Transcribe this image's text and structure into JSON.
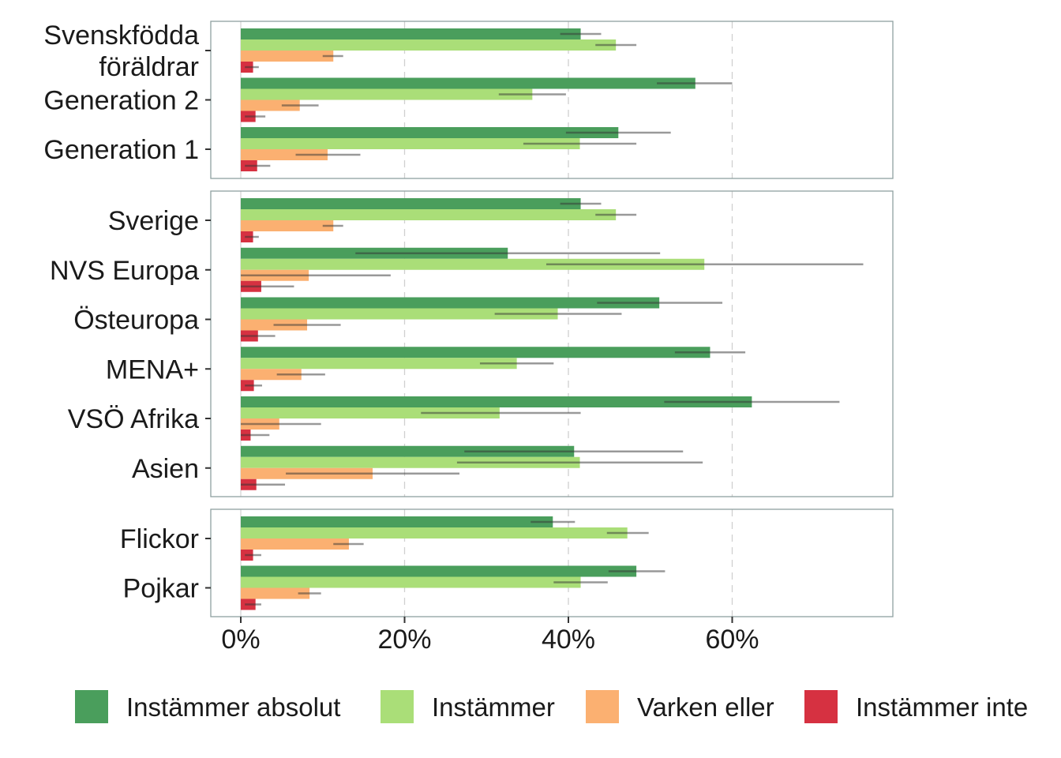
{
  "chart_data": {
    "type": "bar",
    "orientation": "horizontal",
    "grouped": true,
    "xlim": [
      -0.03,
      0.79
    ],
    "x_ticks": [
      0,
      0.2,
      0.4,
      0.6
    ],
    "x_tick_labels": [
      "0%",
      "20%",
      "40%",
      "60%"
    ],
    "grid": "vertical dashed",
    "legend_position": "bottom",
    "series": [
      {
        "name": "Instämmer absolut",
        "color": "#4a9e5c"
      },
      {
        "name": "Instämmer",
        "color": "#aade78"
      },
      {
        "name": "Varken eller",
        "color": "#fbb071"
      },
      {
        "name": "Instämmer inte",
        "color": "#d63141"
      }
    ],
    "panels": [
      {
        "categories": [
          {
            "label": [
              "Svenskfödda",
              "föräldrar"
            ],
            "values": [
              0.415,
              0.458,
              0.113,
              0.015
            ],
            "ci": [
              [
                0.39,
                0.44
              ],
              [
                0.433,
                0.483
              ],
              [
                0.1,
                0.125
              ],
              [
                0.005,
                0.022
              ]
            ]
          },
          {
            "label": [
              "Generation 2"
            ],
            "values": [
              0.555,
              0.356,
              0.072,
              0.018
            ],
            "ci": [
              [
                0.508,
                0.6
              ],
              [
                0.315,
                0.397
              ],
              [
                0.05,
                0.095
              ],
              [
                0.005,
                0.03
              ]
            ]
          },
          {
            "label": [
              "Generation 1"
            ],
            "values": [
              0.461,
              0.414,
              0.106,
              0.02
            ],
            "ci": [
              [
                0.397,
                0.525
              ],
              [
                0.345,
                0.483
              ],
              [
                0.067,
                0.146
              ],
              [
                0.005,
                0.036
              ]
            ]
          }
        ]
      },
      {
        "categories": [
          {
            "label": [
              "Sverige"
            ],
            "values": [
              0.415,
              0.458,
              0.113,
              0.015
            ],
            "ci": [
              [
                0.39,
                0.44
              ],
              [
                0.433,
                0.483
              ],
              [
                0.1,
                0.125
              ],
              [
                0.005,
                0.022
              ]
            ]
          },
          {
            "label": [
              "NVS Europa"
            ],
            "values": [
              0.326,
              0.566,
              0.083,
              0.025
            ],
            "ci": [
              [
                0.14,
                0.512
              ],
              [
                0.373,
                0.76
              ],
              [
                0.0,
                0.183
              ],
              [
                0.0,
                0.065
              ]
            ]
          },
          {
            "label": [
              "Östeuropa"
            ],
            "values": [
              0.511,
              0.387,
              0.081,
              0.021
            ],
            "ci": [
              [
                0.435,
                0.588
              ],
              [
                0.31,
                0.465
              ],
              [
                0.04,
                0.122
              ],
              [
                0.0,
                0.042
              ]
            ]
          },
          {
            "label": [
              "MENA+"
            ],
            "values": [
              0.573,
              0.337,
              0.074,
              0.016
            ],
            "ci": [
              [
                0.53,
                0.616
              ],
              [
                0.292,
                0.382
              ],
              [
                0.044,
                0.103
              ],
              [
                0.005,
                0.026
              ]
            ]
          },
          {
            "label": [
              "VSÖ Afrika"
            ],
            "values": [
              0.624,
              0.316,
              0.047,
              0.012
            ],
            "ci": [
              [
                0.517,
                0.731
              ],
              [
                0.22,
                0.415
              ],
              [
                0.0,
                0.098
              ],
              [
                0.0,
                0.035
              ]
            ]
          },
          {
            "label": [
              "Asien"
            ],
            "values": [
              0.407,
              0.414,
              0.161,
              0.019
            ],
            "ci": [
              [
                0.273,
                0.54
              ],
              [
                0.264,
                0.564
              ],
              [
                0.055,
                0.267
              ],
              [
                0.0,
                0.054
              ]
            ]
          }
        ]
      },
      {
        "categories": [
          {
            "label": [
              "Flickor"
            ],
            "values": [
              0.381,
              0.472,
              0.132,
              0.015
            ],
            "ci": [
              [
                0.354,
                0.408
              ],
              [
                0.447,
                0.498
              ],
              [
                0.113,
                0.15
              ],
              [
                0.005,
                0.025
              ]
            ]
          },
          {
            "label": [
              "Pojkar"
            ],
            "values": [
              0.483,
              0.415,
              0.084,
              0.018
            ],
            "ci": [
              [
                0.449,
                0.518
              ],
              [
                0.382,
                0.448
              ],
              [
                0.07,
                0.098
              ],
              [
                0.005,
                0.025
              ]
            ]
          }
        ]
      }
    ]
  }
}
